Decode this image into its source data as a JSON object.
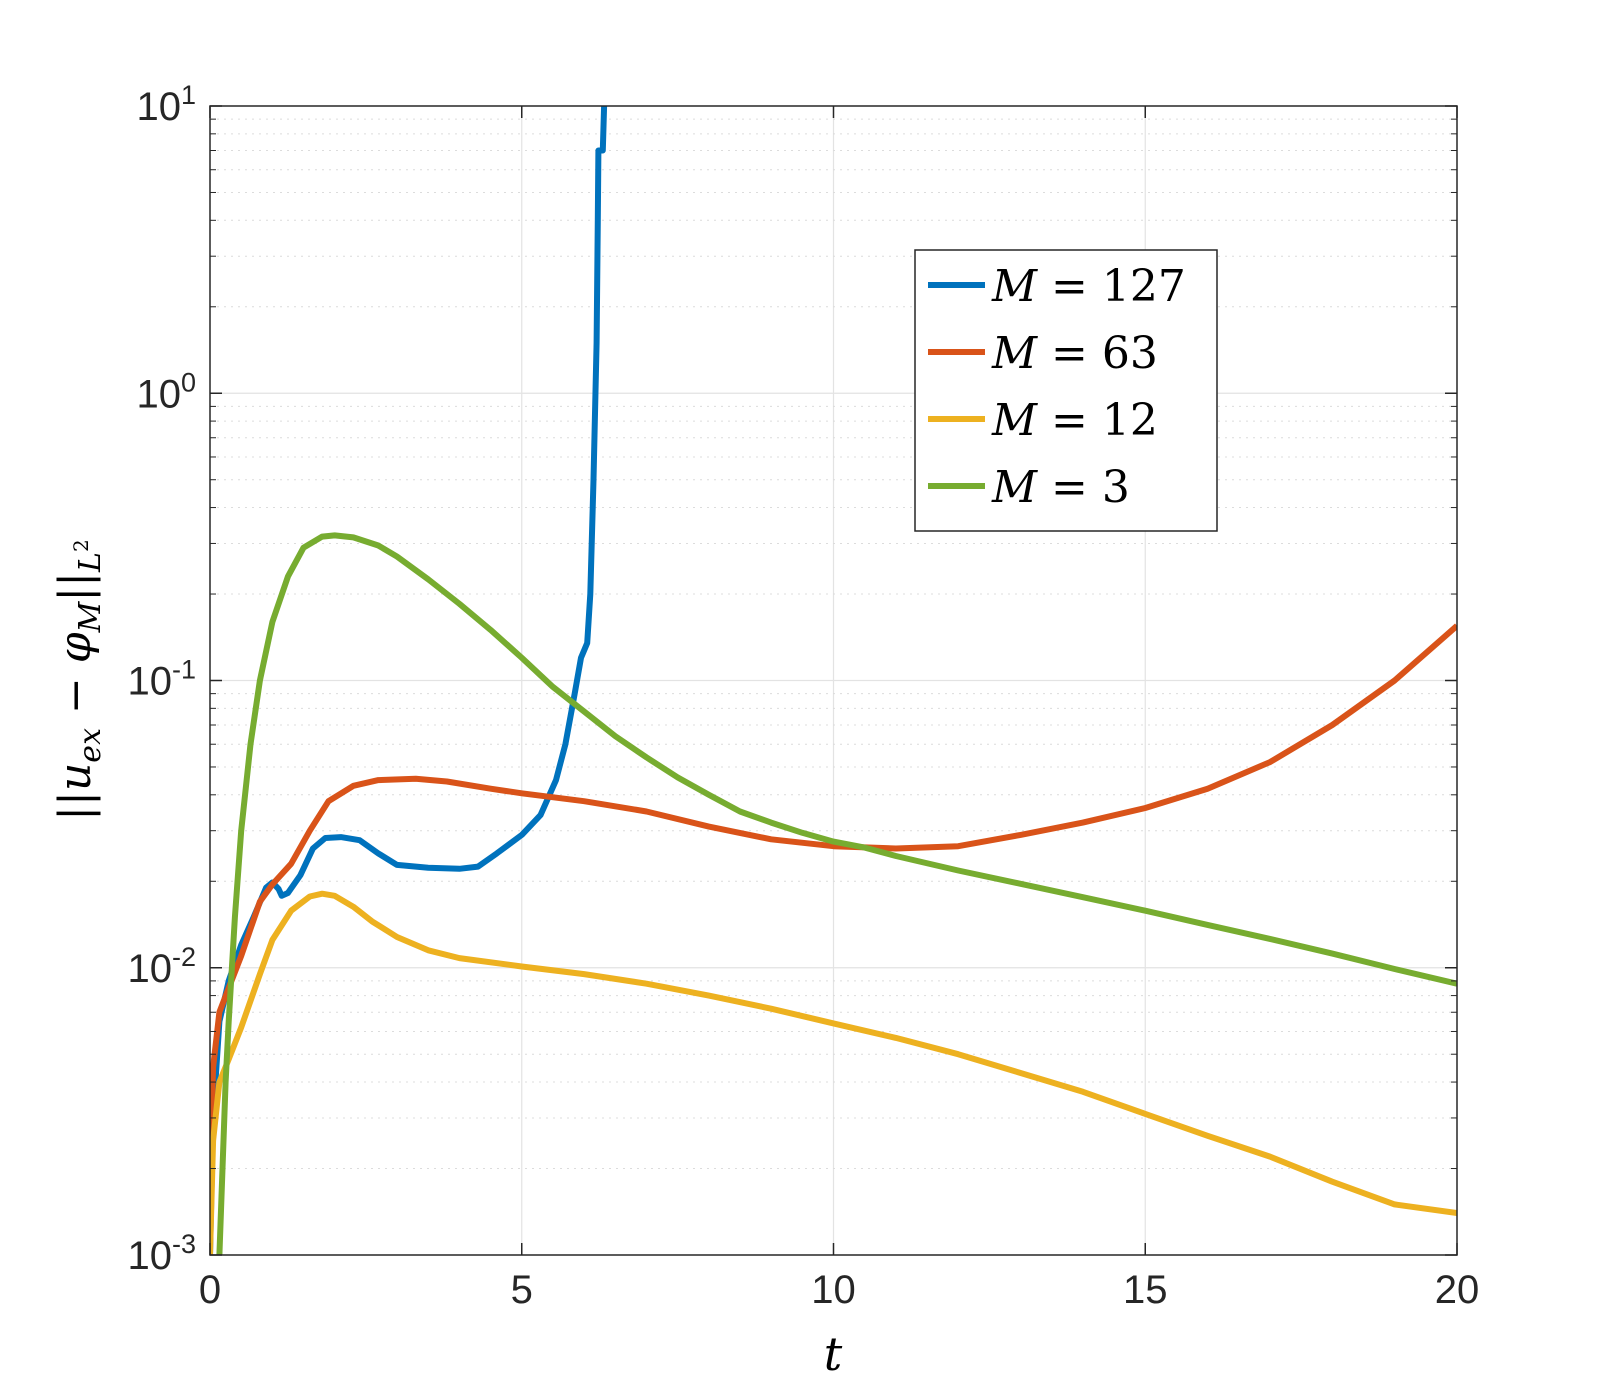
{
  "chart_data": {
    "type": "line",
    "title": "",
    "xlabel": "t",
    "ylabel": "||u_ex − φ_M||_{L²}",
    "xlim": [
      0,
      20
    ],
    "ylim": [
      0.001,
      10
    ],
    "yscale": "log",
    "grid": true,
    "legend_position": "top-right",
    "x_ticks": [
      "0",
      "5",
      "10",
      "15",
      "20"
    ],
    "y_ticks": [
      {
        "base": "10",
        "exp": "1",
        "value": 10
      },
      {
        "base": "10",
        "exp": "0",
        "value": 1
      },
      {
        "base": "10",
        "exp": "-1",
        "value": 0.1
      },
      {
        "base": "10",
        "exp": "-2",
        "value": 0.01
      },
      {
        "base": "10",
        "exp": "-3",
        "value": 0.001
      }
    ],
    "series": [
      {
        "name": "M = 127",
        "color": "#0072BD",
        "points": [
          [
            0,
            0.001
          ],
          [
            0.05,
            0.003
          ],
          [
            0.15,
            0.0065
          ],
          [
            0.3,
            0.009
          ],
          [
            0.5,
            0.012
          ],
          [
            0.7,
            0.015
          ],
          [
            0.9,
            0.019
          ],
          [
            1.0,
            0.0198
          ],
          [
            1.1,
            0.0188
          ],
          [
            1.15,
            0.0178
          ],
          [
            1.25,
            0.0182
          ],
          [
            1.45,
            0.021
          ],
          [
            1.65,
            0.026
          ],
          [
            1.85,
            0.0283
          ],
          [
            2.1,
            0.0285
          ],
          [
            2.4,
            0.0278
          ],
          [
            2.7,
            0.025
          ],
          [
            3.0,
            0.0228
          ],
          [
            3.5,
            0.0223
          ],
          [
            4.0,
            0.0221
          ],
          [
            4.3,
            0.0225
          ],
          [
            4.6,
            0.025
          ],
          [
            5.0,
            0.029
          ],
          [
            5.3,
            0.034
          ],
          [
            5.55,
            0.045
          ],
          [
            5.7,
            0.06
          ],
          [
            5.85,
            0.09
          ],
          [
            5.95,
            0.12
          ],
          [
            6.05,
            0.135
          ],
          [
            6.1,
            0.2
          ],
          [
            6.15,
            0.5
          ],
          [
            6.2,
            1.5
          ],
          [
            6.22,
            4.0
          ],
          [
            6.23,
            7.0
          ],
          [
            6.3,
            7.0
          ],
          [
            6.32,
            10
          ]
        ]
      },
      {
        "name": "M = 63",
        "color": "#D95319",
        "points": [
          [
            0,
            0.002
          ],
          [
            0.05,
            0.0045
          ],
          [
            0.15,
            0.007
          ],
          [
            0.3,
            0.0085
          ],
          [
            0.5,
            0.011
          ],
          [
            0.8,
            0.017
          ],
          [
            1.0,
            0.0195
          ],
          [
            1.3,
            0.023
          ],
          [
            1.6,
            0.03
          ],
          [
            1.9,
            0.038
          ],
          [
            2.3,
            0.043
          ],
          [
            2.7,
            0.045
          ],
          [
            3.3,
            0.0455
          ],
          [
            3.8,
            0.0445
          ],
          [
            4.5,
            0.042
          ],
          [
            5.0,
            0.0405
          ],
          [
            6.0,
            0.038
          ],
          [
            7.0,
            0.035
          ],
          [
            8.0,
            0.031
          ],
          [
            9.0,
            0.028
          ],
          [
            10.0,
            0.0265
          ],
          [
            11.0,
            0.026
          ],
          [
            12.0,
            0.0265
          ],
          [
            13.0,
            0.029
          ],
          [
            14.0,
            0.032
          ],
          [
            15.0,
            0.036
          ],
          [
            16.0,
            0.042
          ],
          [
            17.0,
            0.052
          ],
          [
            18.0,
            0.07
          ],
          [
            19.0,
            0.1
          ],
          [
            20.0,
            0.155
          ]
        ]
      },
      {
        "name": "M = 12",
        "color": "#EDB120",
        "points": [
          [
            0,
            0.001
          ],
          [
            0.05,
            0.0025
          ],
          [
            0.15,
            0.004
          ],
          [
            0.3,
            0.0048
          ],
          [
            0.5,
            0.0062
          ],
          [
            0.8,
            0.0095
          ],
          [
            1.0,
            0.0125
          ],
          [
            1.3,
            0.0158
          ],
          [
            1.6,
            0.0177
          ],
          [
            1.8,
            0.0181
          ],
          [
            2.0,
            0.0178
          ],
          [
            2.3,
            0.0163
          ],
          [
            2.6,
            0.0145
          ],
          [
            3.0,
            0.0128
          ],
          [
            3.5,
            0.0115
          ],
          [
            4.0,
            0.0108
          ],
          [
            5.0,
            0.0101
          ],
          [
            6.0,
            0.0095
          ],
          [
            7.0,
            0.0088
          ],
          [
            8.0,
            0.008
          ],
          [
            9.0,
            0.0072
          ],
          [
            10.0,
            0.0064
          ],
          [
            11.0,
            0.0057
          ],
          [
            12.0,
            0.005
          ],
          [
            13.0,
            0.0043
          ],
          [
            14.0,
            0.0037
          ],
          [
            15.0,
            0.0031
          ],
          [
            16.0,
            0.0026
          ],
          [
            17.0,
            0.0022
          ],
          [
            18.0,
            0.0018
          ],
          [
            19.0,
            0.0015
          ],
          [
            20.0,
            0.0014
          ]
        ]
      },
      {
        "name": "M = 3",
        "color": "#77AC30",
        "points": [
          [
            0.15,
            0.001
          ],
          [
            0.2,
            0.002
          ],
          [
            0.25,
            0.004
          ],
          [
            0.3,
            0.0065
          ],
          [
            0.4,
            0.015
          ],
          [
            0.5,
            0.03
          ],
          [
            0.65,
            0.06
          ],
          [
            0.8,
            0.1
          ],
          [
            1.0,
            0.16
          ],
          [
            1.25,
            0.23
          ],
          [
            1.5,
            0.29
          ],
          [
            1.8,
            0.317
          ],
          [
            2.0,
            0.32
          ],
          [
            2.3,
            0.315
          ],
          [
            2.7,
            0.295
          ],
          [
            3.0,
            0.27
          ],
          [
            3.5,
            0.225
          ],
          [
            4.0,
            0.185
          ],
          [
            4.5,
            0.15
          ],
          [
            5.0,
            0.12
          ],
          [
            5.5,
            0.095
          ],
          [
            6.0,
            0.078
          ],
          [
            6.5,
            0.064
          ],
          [
            7.0,
            0.054
          ],
          [
            7.5,
            0.046
          ],
          [
            8.0,
            0.04
          ],
          [
            8.5,
            0.035
          ],
          [
            9.0,
            0.032
          ],
          [
            9.5,
            0.0295
          ],
          [
            10.0,
            0.0275
          ],
          [
            10.5,
            0.0262
          ],
          [
            11.0,
            0.0245
          ],
          [
            12.0,
            0.0218
          ],
          [
            13.0,
            0.0196
          ],
          [
            14.0,
            0.0176
          ],
          [
            15.0,
            0.0158
          ],
          [
            16.0,
            0.0141
          ],
          [
            17.0,
            0.0126
          ],
          [
            18.0,
            0.0112
          ],
          [
            19.0,
            0.0099
          ],
          [
            20.0,
            0.0088
          ]
        ]
      }
    ]
  }
}
